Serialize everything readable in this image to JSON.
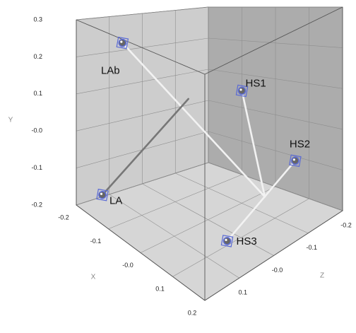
{
  "chart_data": {
    "type": "scatter3d",
    "xlabel": "X",
    "ylabel": "Y",
    "zlabel": "Z",
    "xlim": [
      -0.2,
      0.2
    ],
    "ylim": [
      -0.2,
      0.3
    ],
    "zlim": [
      -0.2,
      0.2
    ],
    "xticks": [
      -0.2,
      -0.1,
      {
        "value": 0,
        "label": "-0.0"
      },
      0.1,
      0.2
    ],
    "yticks": [
      -0.2,
      -0.1,
      {
        "value": 0,
        "label": "-0.0"
      },
      0.1,
      0.2,
      0.3
    ],
    "zticks": [
      -0.2,
      -0.1,
      {
        "value": 0,
        "label": "-0.0"
      },
      0.1
    ],
    "grid": true,
    "point_color": "#5b6bd6",
    "points": [
      {
        "label": "LAb",
        "x": -0.18,
        "y": 0.23,
        "z": 0.08
      },
      {
        "label": "LA",
        "x": -0.16,
        "y": -0.16,
        "z": 0.16
      },
      {
        "label": "HS1",
        "x": -0.06,
        "y": 0.07,
        "z": -0.16
      },
      {
        "label": "HS2",
        "x": 0.13,
        "y": -0.06,
        "z": -0.13
      },
      {
        "label": "HS3",
        "x": 0.11,
        "y": -0.18,
        "z": 0.05
      }
    ],
    "segments": [
      {
        "color": "#f2f2f2",
        "start": {
          "x": -0.18,
          "y": 0.23,
          "z": 0.08
        },
        "end": {
          "x": 0.09,
          "y": -0.14,
          "z": -0.08
        }
      },
      {
        "color": "#f2f2f2",
        "start": {
          "x": -0.06,
          "y": 0.07,
          "z": -0.16
        },
        "end": {
          "x": 0.09,
          "y": -0.14,
          "z": -0.08
        }
      },
      {
        "color": "#f2f2f2",
        "start": {
          "x": 0.13,
          "y": -0.06,
          "z": -0.13
        },
        "end": {
          "x": 0.11,
          "y": -0.18,
          "z": 0.05
        }
      },
      {
        "color": "#777777",
        "start": {
          "x": -0.16,
          "y": -0.16,
          "z": 0.16
        },
        "end": {
          "x": -0.07,
          "y": 0.09,
          "z": -0.01
        }
      }
    ]
  }
}
